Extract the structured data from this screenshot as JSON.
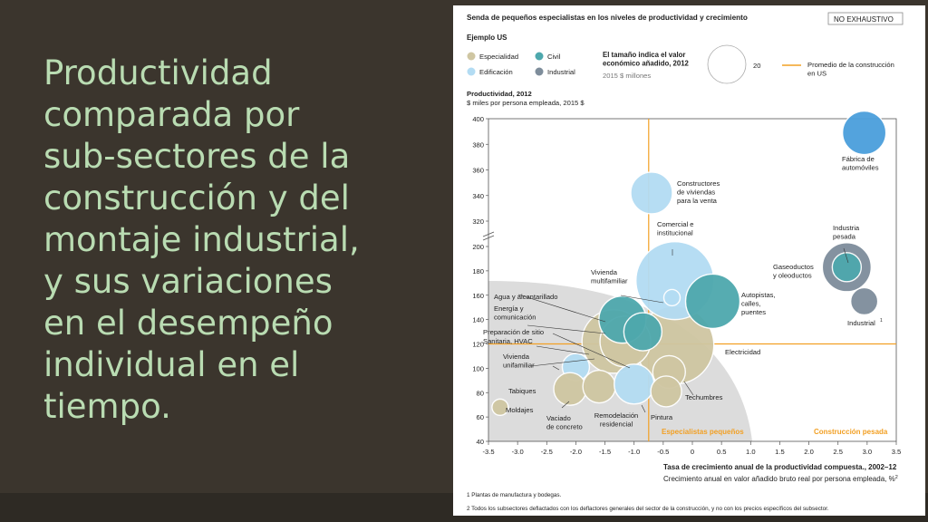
{
  "slide": {
    "title": "Productividad\ncomparada por\nsub-sectores de la\nconstrucción y del\nmontaje industrial,\ny sus variaciones\nen el desempeño\nindividual en el\ntiempo."
  },
  "chart_data": {
    "type": "scatter",
    "title": "Senda de pequeños especialistas en los niveles de productividad y crecimiento",
    "badge": "NO EXHAUSTIVO",
    "subtitle": "Ejemplo US",
    "legend": {
      "items": [
        {
          "label": "Especialidad",
          "color": "#cfc6a2"
        },
        {
          "label": "Civil",
          "color": "#4ea8ad"
        },
        {
          "label": "Edificación",
          "color": "#b3dcf3"
        },
        {
          "label": "Industrial",
          "color": "#7e8d9b"
        }
      ],
      "size_title": "El tamaño indica el valor económico añadido, 2012",
      "size_unit": "2015 $ millones",
      "size_value": "20",
      "avg_line_label": "Promedio de la construcción en US"
    },
    "ylabel": "Productividad, 2012",
    "ylabel_sub": "$ miles por persona empleada, 2015 $",
    "xlabel": "Tasa de crecimiento anual  de la productividad compuesta., 2002–12",
    "xlabel_sub": "Crecimiento anual en valor añadido bruto real por persona empleada, %",
    "xlabel_sub_sup": "2",
    "x_ticks": [
      "-3.5",
      "-3.0",
      "-2.5",
      "-2.0",
      "-1.5",
      "-1.0",
      "-0.5",
      "0",
      "0.5",
      "1.0",
      "1.5",
      "2.0",
      "2.5",
      "3.0",
      "3.5"
    ],
    "y_ticks": [
      "40",
      "60",
      "80",
      "100",
      "120",
      "140",
      "160",
      "180",
      "200",
      "320",
      "340",
      "360",
      "380",
      "400"
    ],
    "xlim": [
      -3.5,
      3.5
    ],
    "ylim_lower": [
      40,
      200
    ],
    "ylim_upper": [
      320,
      400
    ],
    "reference_lines": {
      "x": -0.75,
      "y": 120
    },
    "quadrant_labels": {
      "left": "Especialistas pequeños",
      "right": "Construcción pesada"
    },
    "points": [
      {
        "label": "Fábrica de automóviles",
        "category": "Industrial",
        "color": "#4a9fdc",
        "x": 2.95,
        "y": 389
      },
      {
        "label": "Constructores de viviendas para la venta",
        "category": "Edificación",
        "color": "#b3dcf3",
        "x": -0.7,
        "y": 342
      },
      {
        "label": "Industria pesada",
        "category": "Industrial",
        "color": "#7e8d9b",
        "x": 2.65,
        "y": 183
      },
      {
        "label": "Gaseoductos y oleoductos",
        "category": "Civil",
        "color": "#4ea8ad",
        "x": 2.65,
        "y": 183
      },
      {
        "label": "Industrial",
        "label_sup": "1",
        "category": "Industrial",
        "color": "#7e8d9b",
        "x": 2.95,
        "y": 155
      },
      {
        "label": "Electricidad",
        "category": "Especialidad",
        "color": "#cfc6a2",
        "x": -0.3,
        "y": 119
      },
      {
        "label": "Comercial e institucional",
        "category": "Edificación",
        "color": "#b3dcf3",
        "x": -0.3,
        "y": 172
      },
      {
        "label": "Autopistas, calles, puentes",
        "category": "Civil",
        "color": "#4ea8ad",
        "x": 0.35,
        "y": 155
      },
      {
        "label": "Vivienda multifamiliar",
        "category": "Edificación",
        "color": "#b3dcf3",
        "x": -0.35,
        "y": 158
      },
      {
        "label": "Preparación de sitio",
        "category": "Especialidad",
        "color": "#cfc6a2",
        "x": -1.35,
        "y": 122
      },
      {
        "label": "Sanitaria, HVAC",
        "category": "Especialidad",
        "color": "#cfc6a2",
        "x": -1.15,
        "y": 122
      },
      {
        "label": "Agua y alcantarillado",
        "category": "Civil",
        "color": "#4ea8ad",
        "x": -1.2,
        "y": 140
      },
      {
        "label": "Energía y comunicación",
        "category": "Civil",
        "color": "#4ea8ad",
        "x": -0.85,
        "y": 130
      },
      {
        "label": "Techumbres",
        "category": "Especialidad",
        "color": "#cfc6a2",
        "x": -0.4,
        "y": 97
      },
      {
        "label": "Vivienda unifamiliar",
        "category": "Edificación",
        "color": "#b3dcf3",
        "x": -2.0,
        "y": 101
      },
      {
        "label": "Tabiques",
        "category": "Especialidad",
        "color": "#cfc6a2",
        "x": -2.1,
        "y": 83
      },
      {
        "label": "Vaciado de concreto",
        "category": "Especialidad",
        "color": "#cfc6a2",
        "x": -1.6,
        "y": 85
      },
      {
        "label": "Remodelación residencial",
        "category": "Edificación",
        "color": "#b3dcf3",
        "x": -1.0,
        "y": 87
      },
      {
        "label": "Pintura",
        "category": "Especialidad",
        "color": "#cfc6a2",
        "x": -0.45,
        "y": 81
      },
      {
        "label": "Moldajes",
        "category": "Especialidad",
        "color": "#cfc6a2",
        "x": -3.3,
        "y": 68
      }
    ],
    "footnotes": [
      "1  Plantas de manufactura y bodegas.",
      "2  Todos los subsectores deflactados con los deflactores generales del sector de la construcción, y no con los precios específicos del subsector."
    ]
  }
}
